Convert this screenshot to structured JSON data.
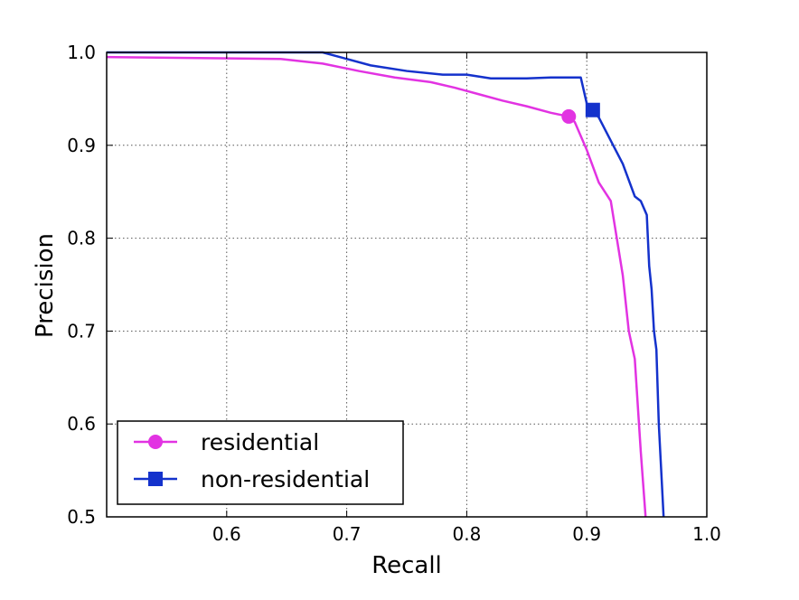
{
  "chart_data": {
    "type": "line",
    "xlabel": "Recall",
    "ylabel": "Precision",
    "xlim": [
      0.5,
      1.0
    ],
    "ylim": [
      0.5,
      1.0
    ],
    "grid": true,
    "legend_position": "bottom-left",
    "xticks": [
      "0.6",
      "0.7",
      "0.8",
      "0.9",
      "1.0"
    ],
    "yticks": [
      "0.5",
      "0.6",
      "0.7",
      "0.8",
      "0.9",
      "1.0"
    ],
    "series": [
      {
        "name": "residential",
        "color": "#e233e2",
        "marker": "circle",
        "x": [
          0.5,
          0.645,
          0.68,
          0.71,
          0.74,
          0.77,
          0.79,
          0.81,
          0.83,
          0.85,
          0.87,
          0.885,
          0.89,
          0.9,
          0.91,
          0.92,
          0.925,
          0.93,
          0.935,
          0.94,
          0.945,
          0.949
        ],
        "y": [
          0.995,
          0.993,
          0.988,
          0.98,
          0.973,
          0.968,
          0.962,
          0.955,
          0.948,
          0.942,
          0.935,
          0.931,
          0.925,
          0.895,
          0.86,
          0.84,
          0.8,
          0.76,
          0.7,
          0.67,
          0.57,
          0.5
        ],
        "marker_point": {
          "x": 0.885,
          "y": 0.931
        }
      },
      {
        "name": "non-residential",
        "color": "#1432cc",
        "marker": "square",
        "x": [
          0.5,
          0.68,
          0.7,
          0.72,
          0.75,
          0.78,
          0.8,
          0.82,
          0.85,
          0.87,
          0.895,
          0.9,
          0.905,
          0.91,
          0.92,
          0.93,
          0.94,
          0.945,
          0.95,
          0.952,
          0.954,
          0.956,
          0.958,
          0.96,
          0.962,
          0.964
        ],
        "y": [
          1.0,
          1.0,
          0.993,
          0.986,
          0.98,
          0.976,
          0.976,
          0.972,
          0.972,
          0.973,
          0.973,
          0.945,
          0.938,
          0.93,
          0.905,
          0.88,
          0.845,
          0.84,
          0.825,
          0.77,
          0.745,
          0.7,
          0.68,
          0.6,
          0.55,
          0.5
        ],
        "marker_point": {
          "x": 0.905,
          "y": 0.938
        }
      }
    ]
  }
}
